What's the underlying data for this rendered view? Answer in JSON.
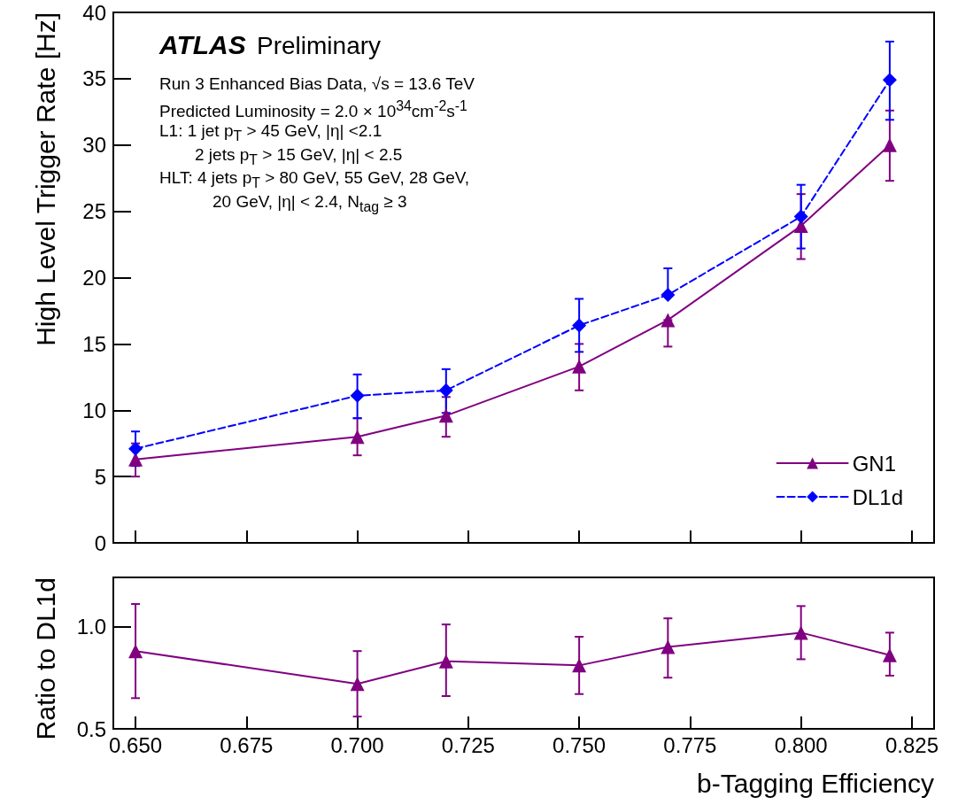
{
  "chart_data": [
    {
      "type": "line",
      "ylabel": "High Level Trigger Rate [Hz]",
      "x": [
        0.65,
        0.7,
        0.72,
        0.75,
        0.77,
        0.8,
        0.82
      ],
      "xlim": [
        0.645,
        0.83
      ],
      "xticks": [
        {
          "value": 0.65,
          "label": null
        },
        {
          "value": 0.675,
          "label": null
        },
        {
          "value": 0.7,
          "label": null
        },
        {
          "value": 0.725,
          "label": null
        },
        {
          "value": 0.75,
          "label": null
        },
        {
          "value": 0.775,
          "label": null
        },
        {
          "value": 0.8,
          "label": null
        },
        {
          "value": 0.825,
          "label": null
        }
      ],
      "ylim": [
        0,
        40
      ],
      "yticks": [
        0,
        5,
        10,
        15,
        20,
        25,
        30,
        35,
        40
      ],
      "tick_labels": "y",
      "legend": "bottom right",
      "grid": false,
      "series": [
        {
          "name": "GN1",
          "color": "#800080",
          "marker": "triangle",
          "line_style": "solid",
          "values": [
            6.3,
            8.0,
            9.6,
            13.3,
            16.8,
            23.9,
            30.0
          ],
          "errors": [
            [
              5.0,
              7.5
            ],
            [
              6.6,
              9.4
            ],
            [
              8.0,
              11.0
            ],
            [
              11.5,
              15.0
            ],
            [
              14.8,
              16.8
            ],
            [
              21.4,
              26.3
            ],
            [
              27.3,
              32.6
            ]
          ]
        },
        {
          "name": "DL1d",
          "color": "#0000ff",
          "marker": "diamond",
          "line_style": "dashed",
          "values": [
            7.1,
            11.1,
            11.5,
            16.4,
            18.7,
            24.6,
            34.9
          ],
          "errors": [
            [
              5.8,
              8.4
            ],
            [
              9.4,
              12.7
            ],
            [
              9.8,
              13.1
            ],
            [
              14.4,
              18.4
            ],
            [
              18.7,
              20.7
            ],
            [
              22.2,
              27.0
            ],
            [
              31.9,
              37.8
            ]
          ]
        }
      ],
      "annotations": [
        "ATLAS",
        "Preliminary",
        "Run 3 Enhanced Bias Data, √s = 13.6 TeV",
        "Predicted Luminosity = 2.0 × 10$^{34}$cm$^{-2}$s$^{-1}$",
        "L1: 1 jet p$_{T}$ > 45 GeV, |η| <2.1",
        "2 jets p$_{T}$ > 15 GeV, |η| < 2.5",
        "HLT: 4 jets p$_{T}$ > 80 GeV, 55 GeV, 28 GeV,",
        "20 GeV, |η| < 2.4, N$_{tag}$ ≥ 3"
      ]
    },
    {
      "type": "line",
      "ylabel": "Ratio to DL1d",
      "xlabel": "b-Tagging Efficiency",
      "x": [
        0.65,
        0.7,
        0.72,
        0.75,
        0.77,
        0.8,
        0.82
      ],
      "xlim": [
        0.645,
        0.83
      ],
      "xticks": [
        {
          "value": 0.65,
          "label": "0.650"
        },
        {
          "value": 0.675,
          "label": "0.675"
        },
        {
          "value": 0.7,
          "label": "0.700"
        },
        {
          "value": 0.725,
          "label": "0.725"
        },
        {
          "value": 0.75,
          "label": "0.750"
        },
        {
          "value": 0.775,
          "label": "0.775"
        },
        {
          "value": 0.8,
          "label": "0.800"
        },
        {
          "value": 0.825,
          "label": "0.825"
        }
      ],
      "ylim": [
        0.5,
        1.24
      ],
      "yticks": [
        0.5,
        {
          "value": 1.0,
          "label": "1.0"
        }
      ],
      "grid": false,
      "series": [
        {
          "color": "#800080",
          "marker": "triangle",
          "line_style": "solid",
          "values": [
            0.88,
            0.72,
            0.83,
            0.81,
            0.9,
            0.97,
            0.86
          ],
          "errors": [
            [
              0.65,
              1.11
            ],
            [
              0.56,
              0.88
            ],
            [
              0.66,
              1.01
            ],
            [
              0.67,
              0.95
            ],
            [
              0.75,
              1.04
            ],
            [
              0.84,
              1.1
            ],
            [
              0.76,
              0.97
            ]
          ]
        }
      ]
    }
  ]
}
